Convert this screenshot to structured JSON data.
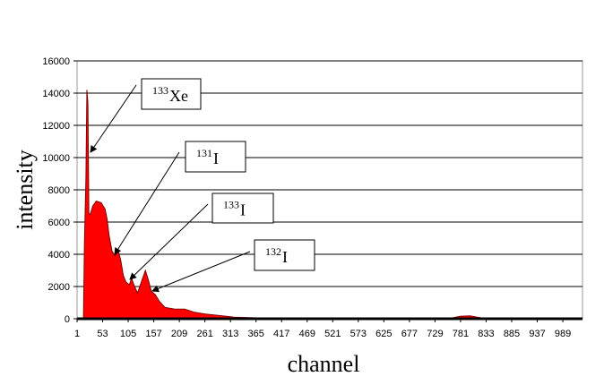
{
  "chart_data": {
    "type": "area",
    "x_label": "channel",
    "y_label": "intensity",
    "x": [
      10,
      14,
      16,
      19,
      21,
      23,
      25,
      28,
      33,
      40,
      50,
      58,
      62,
      66,
      72,
      78,
      85,
      90,
      95,
      100,
      107,
      112,
      118,
      124,
      132,
      140,
      146,
      152,
      160,
      168,
      180,
      200,
      220,
      240,
      260,
      290,
      320,
      360,
      400,
      500,
      700,
      760,
      780,
      800,
      815,
      830,
      900,
      1020
    ],
    "values": [
      0,
      0,
      4700,
      8700,
      14200,
      13400,
      6500,
      6500,
      7000,
      7300,
      7200,
      6800,
      6200,
      5200,
      4200,
      3900,
      4200,
      3600,
      2700,
      2300,
      2100,
      2500,
      2000,
      1600,
      2300,
      3000,
      2400,
      1700,
      1500,
      1100,
      700,
      600,
      600,
      400,
      300,
      200,
      100,
      60,
      20,
      20,
      20,
      30,
      150,
      180,
      100,
      20,
      10,
      0
    ],
    "color": "#ff0000",
    "xlim": [
      1,
      1029
    ],
    "xticks": [
      1,
      53,
      105,
      157,
      209,
      261,
      313,
      365,
      417,
      469,
      521,
      573,
      625,
      677,
      729,
      781,
      833,
      885,
      937,
      989
    ],
    "ylim": [
      0,
      16000
    ],
    "yticks": [
      0,
      2000,
      4000,
      6000,
      8000,
      10000,
      12000,
      14000,
      16000
    ],
    "grid": true,
    "annotations": [
      {
        "sup": "133",
        "text": "Xe"
      },
      {
        "sup": "131",
        "text": "I"
      },
      {
        "sup": "133",
        "text": "I"
      },
      {
        "sup": "132",
        "text": "I"
      }
    ]
  }
}
